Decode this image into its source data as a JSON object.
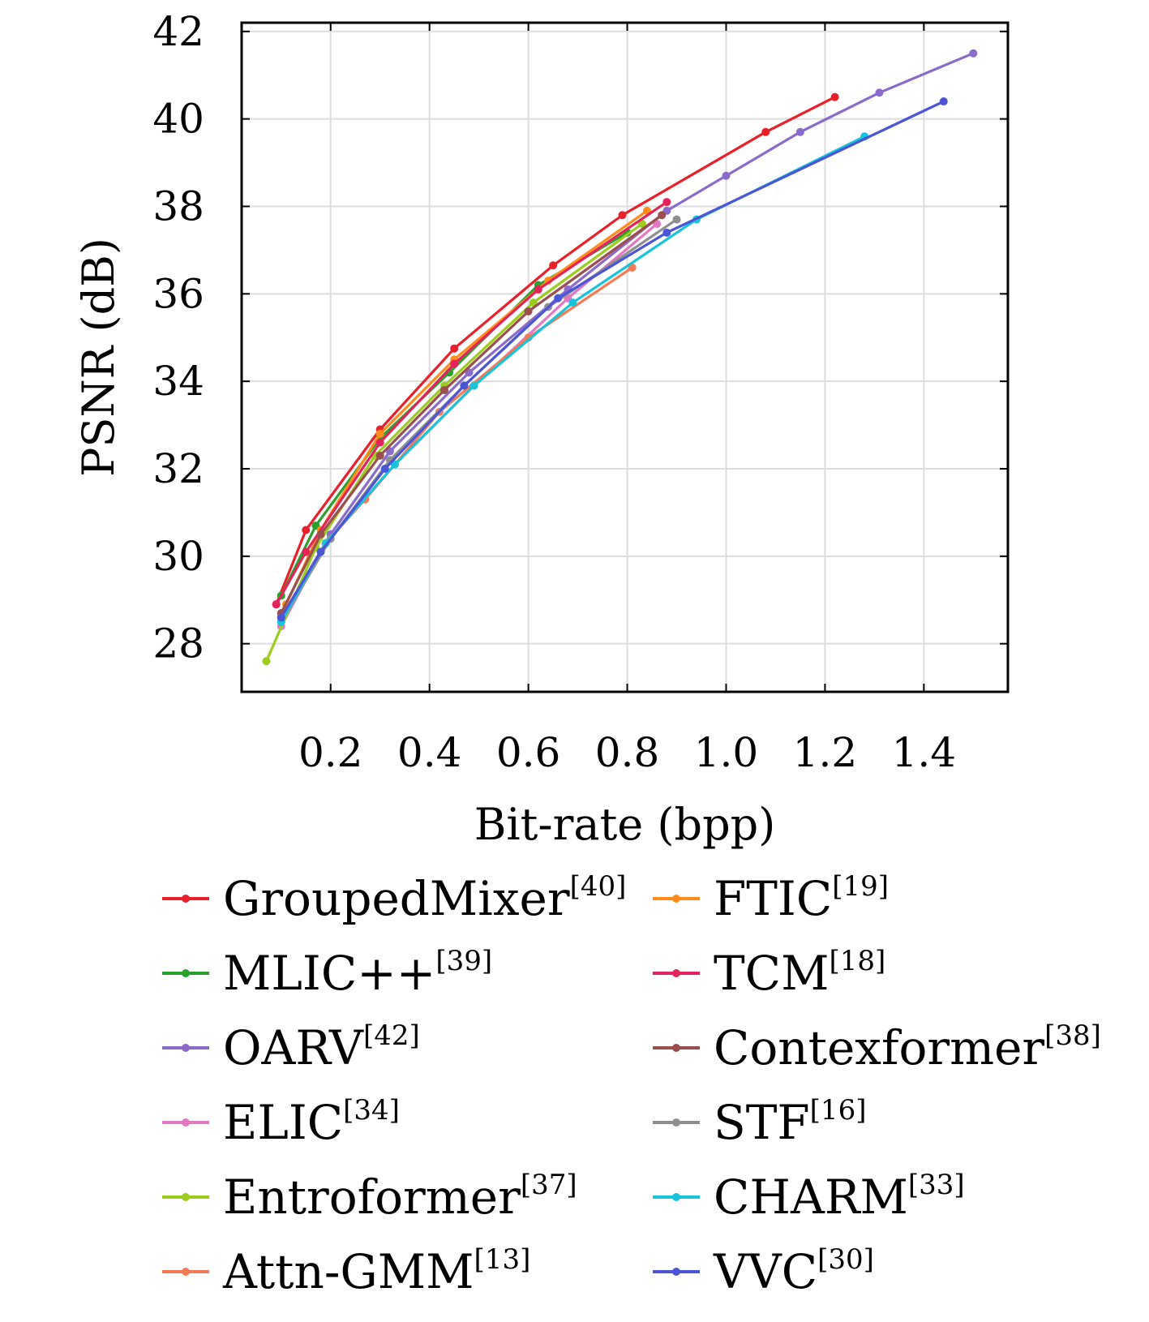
{
  "chart_data": {
    "type": "line",
    "xlabel": "Bit-rate (bpp)",
    "ylabel": "PSNR (dB)",
    "xlim": [
      0.02,
      1.57
    ],
    "ylim": [
      26.9,
      42.2
    ],
    "xticks": [
      0.2,
      0.4,
      0.6,
      0.8,
      1.0,
      1.2,
      1.4
    ],
    "xtick_labels": [
      "0.2",
      "0.4",
      "0.6",
      "0.8",
      "1.0",
      "1.2",
      "1.4"
    ],
    "yticks": [
      28,
      30,
      32,
      34,
      36,
      38,
      40,
      42
    ],
    "ytick_labels": [
      "28",
      "30",
      "32",
      "34",
      "36",
      "38",
      "40",
      "42"
    ],
    "grid": true,
    "legend_position": "below",
    "series": [
      {
        "name": "GroupedMixer",
        "ref": "[40]",
        "color": "#e8202a",
        "x": [
          0.09,
          0.15,
          0.3,
          0.45,
          0.65,
          0.79,
          1.08,
          1.22
        ],
        "y": [
          28.9,
          30.6,
          32.9,
          34.75,
          36.65,
          37.8,
          39.7,
          40.5
        ]
      },
      {
        "name": "MLIC++",
        "ref": "[39]",
        "color": "#2ca02c",
        "x": [
          0.1,
          0.17,
          0.3,
          0.44,
          0.62,
          0.8
        ],
        "y": [
          29.1,
          30.7,
          32.7,
          34.2,
          36.2,
          37.4
        ]
      },
      {
        "name": "OARV",
        "ref": "[42]",
        "color": "#8a6bc9",
        "x": [
          0.1,
          0.2,
          0.32,
          0.48,
          0.68,
          0.88,
          1.0,
          1.15,
          1.31,
          1.5
        ],
        "y": [
          28.6,
          30.5,
          32.4,
          34.2,
          36.1,
          37.9,
          38.7,
          39.7,
          40.6,
          41.5
        ]
      },
      {
        "name": "ELIC",
        "ref": "[34]",
        "color": "#e377c2",
        "x": [
          0.1,
          0.19,
          0.33,
          0.49,
          0.68,
          0.86
        ],
        "y": [
          28.4,
          30.3,
          32.1,
          33.9,
          35.9,
          37.6
        ]
      },
      {
        "name": "Entroformer",
        "ref": "[37]",
        "color": "#9bcc1e",
        "x": [
          0.07,
          0.17,
          0.29,
          0.43,
          0.61,
          0.83
        ],
        "y": [
          27.6,
          30.2,
          32.3,
          33.9,
          35.8,
          37.6
        ]
      },
      {
        "name": "Attn-GMM",
        "ref": "[13]",
        "color": "#f47a55",
        "x": [
          0.1,
          0.19,
          0.27,
          0.42,
          0.6,
          0.81
        ],
        "y": [
          28.5,
          30.3,
          31.3,
          33.3,
          35.0,
          36.6
        ]
      },
      {
        "name": "FTIC",
        "ref": "[19]",
        "color": "#ff8c1a",
        "x": [
          0.11,
          0.18,
          0.3,
          0.45,
          0.64,
          0.84
        ],
        "y": [
          28.9,
          30.6,
          32.8,
          34.5,
          36.3,
          37.9
        ]
      },
      {
        "name": "TCM",
        "ref": "[18]",
        "color": "#e3245a",
        "x": [
          0.09,
          0.15,
          0.3,
          0.45,
          0.62,
          0.88
        ],
        "y": [
          28.9,
          30.1,
          32.6,
          34.4,
          36.1,
          38.1
        ]
      },
      {
        "name": "Contexformer",
        "ref": "[38]",
        "color": "#9b4e4e",
        "x": [
          0.1,
          0.18,
          0.3,
          0.43,
          0.6,
          0.87
        ],
        "y": [
          28.7,
          30.5,
          32.3,
          33.8,
          35.6,
          37.8
        ]
      },
      {
        "name": "STF",
        "ref": "[16]",
        "color": "#8f8f8f",
        "x": [
          0.1,
          0.2,
          0.32,
          0.47,
          0.64,
          0.9
        ],
        "y": [
          28.5,
          30.4,
          32.2,
          33.9,
          35.7,
          37.7
        ]
      },
      {
        "name": "CHARM",
        "ref": "[33]",
        "color": "#19c3d9",
        "x": [
          0.1,
          0.19,
          0.33,
          0.49,
          0.69,
          0.94,
          1.28
        ],
        "y": [
          28.5,
          30.3,
          32.1,
          33.9,
          35.8,
          37.7,
          39.6
        ]
      },
      {
        "name": "VVC",
        "ref": "[30]",
        "color": "#4a56d6",
        "x": [
          0.1,
          0.18,
          0.31,
          0.47,
          0.66,
          0.88,
          1.44
        ],
        "y": [
          28.6,
          30.1,
          32.0,
          33.9,
          35.9,
          37.4,
          40.4
        ]
      }
    ]
  }
}
